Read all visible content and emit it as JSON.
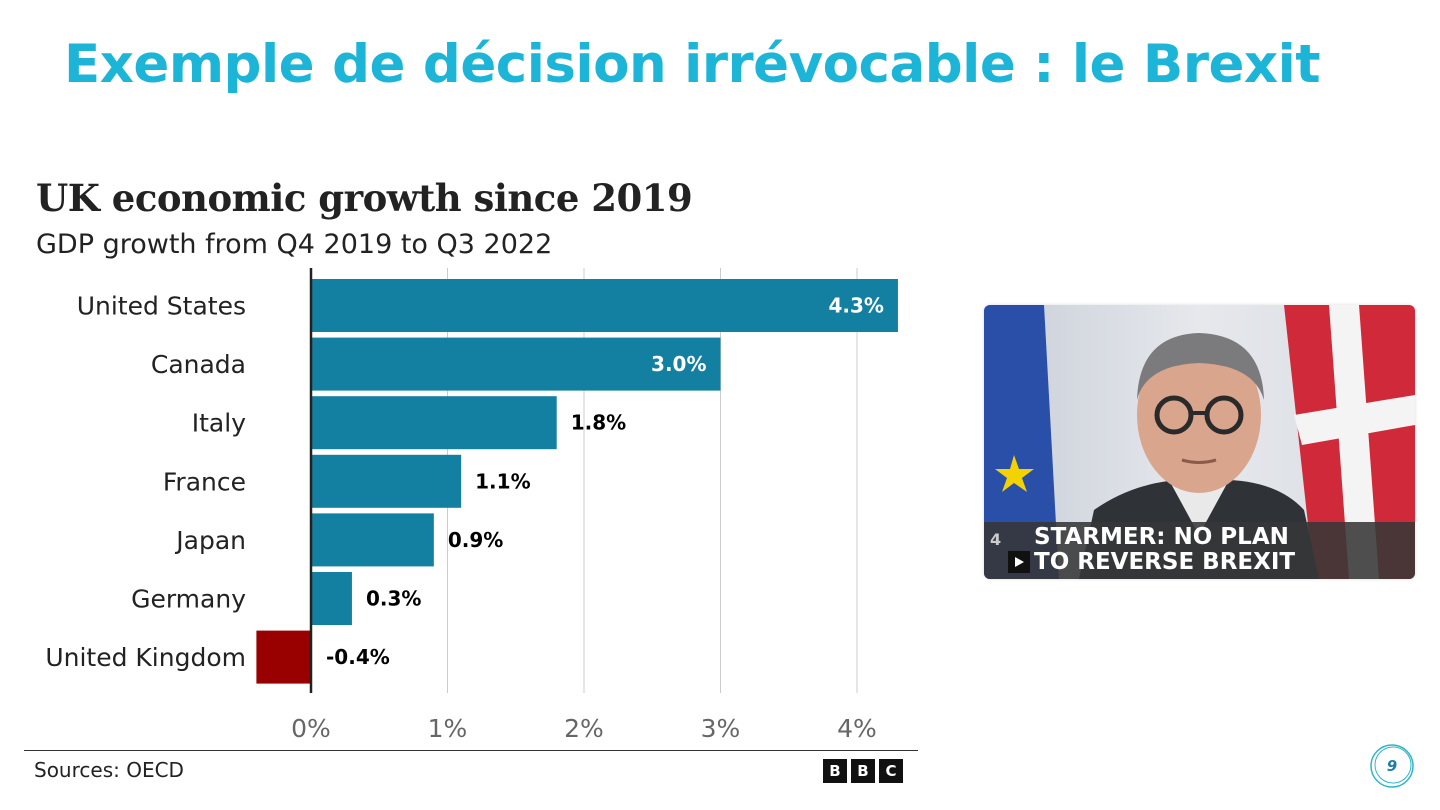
{
  "slide": {
    "title": "Exemple de décision irrévocable : le Brexit",
    "page_number": "9"
  },
  "chart_data": {
    "type": "bar",
    "orientation": "horizontal",
    "title": "UK economic growth since 2019",
    "subtitle": "GDP growth from Q4 2019 to Q3 2022",
    "categories": [
      "United States",
      "Canada",
      "Italy",
      "France",
      "Japan",
      "Germany",
      "United Kingdom"
    ],
    "values": [
      4.3,
      3.0,
      1.8,
      1.1,
      0.9,
      0.3,
      -0.4
    ],
    "data_labels": [
      "4.3%",
      "3.0%",
      "1.8%",
      "1.1%",
      "0.9%",
      "0.3%",
      "-0.4%"
    ],
    "x_ticks": [
      0,
      1,
      2,
      3,
      4
    ],
    "x_tick_labels": [
      "0%",
      "1%",
      "2%",
      "3%",
      "4%"
    ],
    "xlim": [
      -0.4,
      4.3
    ],
    "grid": true,
    "colors": {
      "positive": "#1380a1",
      "negative": "#990000"
    },
    "source": "Sources: OECD",
    "logo": "BBC"
  },
  "video": {
    "caption_line1": "STARMER: NO PLAN",
    "caption_line2": "TO REVERSE BREXIT",
    "icons": [
      "channel4-logo-icon",
      "play-icon"
    ]
  },
  "colors": {
    "title": "#1cb5d8",
    "text": "#222222"
  }
}
